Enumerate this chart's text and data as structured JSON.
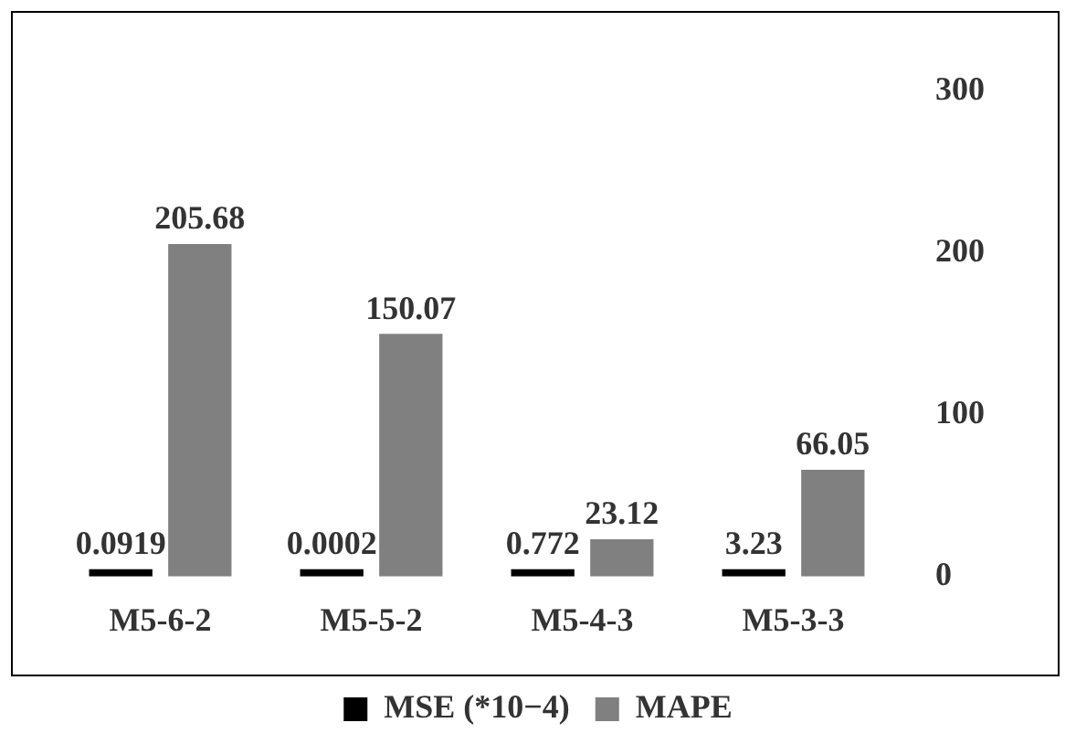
{
  "chart_data": {
    "type": "bar",
    "categories": [
      "M5-6-2",
      "M5-5-2",
      "M5-4-3",
      "M5-3-3"
    ],
    "series": [
      {
        "name": "MSE (*10−4)",
        "color": "#000000",
        "values": [
          0.0919,
          0.0002,
          0.772,
          3.23
        ]
      },
      {
        "name": "MAPE",
        "color": "#808080",
        "values": [
          205.68,
          150.07,
          23.12,
          66.05
        ]
      }
    ],
    "ylim": [
      0,
      300
    ],
    "yticks": [
      0,
      100,
      200,
      300
    ],
    "grid": false,
    "legend": "bottom",
    "data_labels": true
  }
}
